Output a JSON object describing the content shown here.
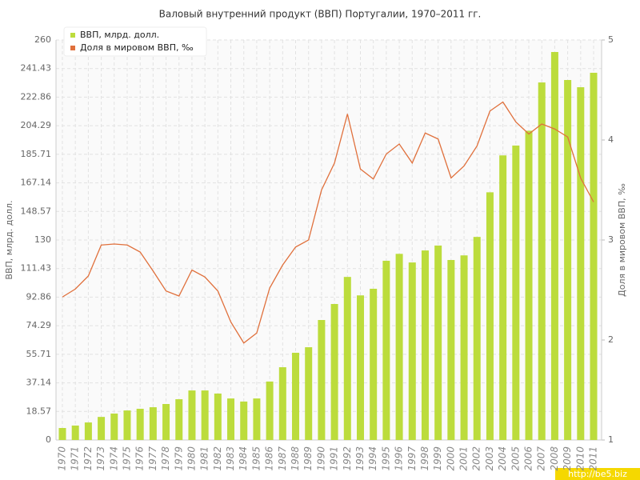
{
  "chart_data": {
    "type": "bar",
    "title": "Валовый внутренний продукт (ВВП) Португалии, 1970–2011 гг.",
    "y_label": "ВВП, млрд. долл.",
    "y2_label": "Доля в мировом ВВП, ‰",
    "watermark": "http://be5.biz",
    "categories": [
      "1970",
      "1971",
      "1972",
      "1973",
      "1974",
      "1975",
      "1976",
      "1977",
      "1978",
      "1979",
      "1980",
      "1981",
      "1982",
      "1983",
      "1984",
      "1985",
      "1986",
      "1987",
      "1988",
      "1989",
      "1990",
      "1991",
      "1992",
      "1993",
      "1994",
      "1995",
      "1996",
      "1997",
      "1998",
      "1999",
      "2000",
      "2001",
      "2002",
      "2003",
      "2004",
      "2005",
      "2006",
      "2007",
      "2008",
      "2009",
      "2010",
      "2011"
    ],
    "series": [
      {
        "name": "ВВП, млрд. долл.",
        "color": "#bcdc3c",
        "type": "bar",
        "values": [
          7.8,
          9.4,
          11.4,
          15,
          17.2,
          19.2,
          20.3,
          21.3,
          23.4,
          26.5,
          32.2,
          32.2,
          30.2,
          27,
          25,
          27,
          38,
          47.3,
          56.7,
          60.3,
          78,
          88.4,
          106,
          94,
          98.3,
          116.5,
          121,
          115.4,
          123.2,
          126.4,
          117,
          120,
          132,
          161,
          185,
          191.4,
          201,
          232.4,
          252.2,
          234,
          229.3,
          238.7
        ]
      },
      {
        "name": "Доля в мировом ВВП, ‰",
        "color": "#e0703c",
        "type": "line",
        "axis": "y2",
        "values": [
          2.43,
          2.51,
          2.64,
          2.95,
          2.96,
          2.95,
          2.88,
          2.69,
          2.49,
          2.44,
          2.7,
          2.63,
          2.49,
          2.18,
          1.97,
          2.07,
          2.52,
          2.75,
          2.93,
          3.0,
          3.5,
          3.77,
          4.26,
          3.71,
          3.61,
          3.86,
          3.96,
          3.77,
          4.07,
          4.01,
          3.62,
          3.74,
          3.94,
          4.29,
          4.38,
          4.18,
          4.06,
          4.16,
          4.11,
          4.03,
          3.62,
          3.38
        ]
      }
    ],
    "ylim": [
      0,
      260
    ],
    "yticks": [
      0,
      18.57,
      37.14,
      55.71,
      74.29,
      92.86,
      111.43,
      130,
      148.57,
      167.14,
      185.71,
      204.29,
      222.86,
      241.43,
      260
    ],
    "y2lim": [
      1,
      5
    ],
    "y2ticks": [
      1,
      2,
      3,
      4,
      5
    ],
    "grid": true,
    "legend": "top-left"
  }
}
